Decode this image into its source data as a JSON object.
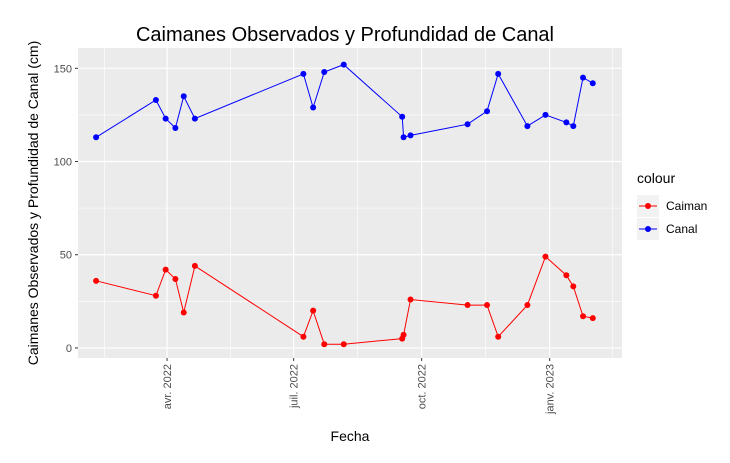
{
  "chart_data": {
    "type": "line",
    "title": "Caimanes Observados y Profundidad de Canal",
    "xlabel": "Fecha",
    "ylabel": "Caimanes Observados y Profundidad de Canal (cm)",
    "xlim": [
      "2022-01-27",
      "2023-02-22"
    ],
    "ylim": [
      -5.4,
      160.9
    ],
    "grid": true,
    "x_ticks": [
      {
        "date": "2022-04-01",
        "label": "avr. 2022"
      },
      {
        "date": "2022-07-01",
        "label": "juil. 2022"
      },
      {
        "date": "2022-10-01",
        "label": "oct. 2022"
      },
      {
        "date": "2023-01-01",
        "label": "janv. 2023"
      }
    ],
    "x_minor_dates": [
      "2022-01-01",
      "2022-04-01",
      "2022-07-01",
      "2022-10-01",
      "2023-01-01",
      "2023-04-01"
    ],
    "y_ticks": [
      0,
      50,
      100,
      150
    ],
    "legend": {
      "title": "colour",
      "placement": "right"
    },
    "series": [
      {
        "name": "Caiman",
        "color": "#FF0000",
        "x": [
          "2022-02-09",
          "2022-03-24",
          "2022-03-31",
          "2022-04-07",
          "2022-04-13",
          "2022-04-21",
          "2022-07-08",
          "2022-07-15",
          "2022-07-23",
          "2022-08-06",
          "2022-09-17",
          "2022-09-18",
          "2022-09-23",
          "2022-11-03",
          "2022-11-17",
          "2022-11-25",
          "2022-12-16",
          "2022-12-29",
          "2023-01-13",
          "2023-01-18",
          "2023-01-25",
          "2023-02-01"
        ],
        "y": [
          36,
          28,
          42,
          37,
          19,
          44,
          6,
          20,
          2,
          2,
          5,
          7,
          26,
          23,
          23,
          6,
          23,
          49,
          39,
          33,
          17,
          16
        ]
      },
      {
        "name": "Canal",
        "color": "#0000FF",
        "x": [
          "2022-02-09",
          "2022-03-24",
          "2022-03-31",
          "2022-04-07",
          "2022-04-13",
          "2022-04-21",
          "2022-07-08",
          "2022-07-15",
          "2022-07-23",
          "2022-08-06",
          "2022-09-17",
          "2022-09-18",
          "2022-09-23",
          "2022-11-03",
          "2022-11-17",
          "2022-11-25",
          "2022-12-16",
          "2022-12-29",
          "2023-01-13",
          "2023-01-18",
          "2023-01-25",
          "2023-02-01"
        ],
        "y": [
          113,
          133,
          123,
          118,
          135,
          123,
          147,
          129,
          148,
          152,
          124,
          113,
          114,
          120,
          127,
          147,
          119,
          125,
          121,
          119,
          145,
          142
        ]
      }
    ]
  }
}
